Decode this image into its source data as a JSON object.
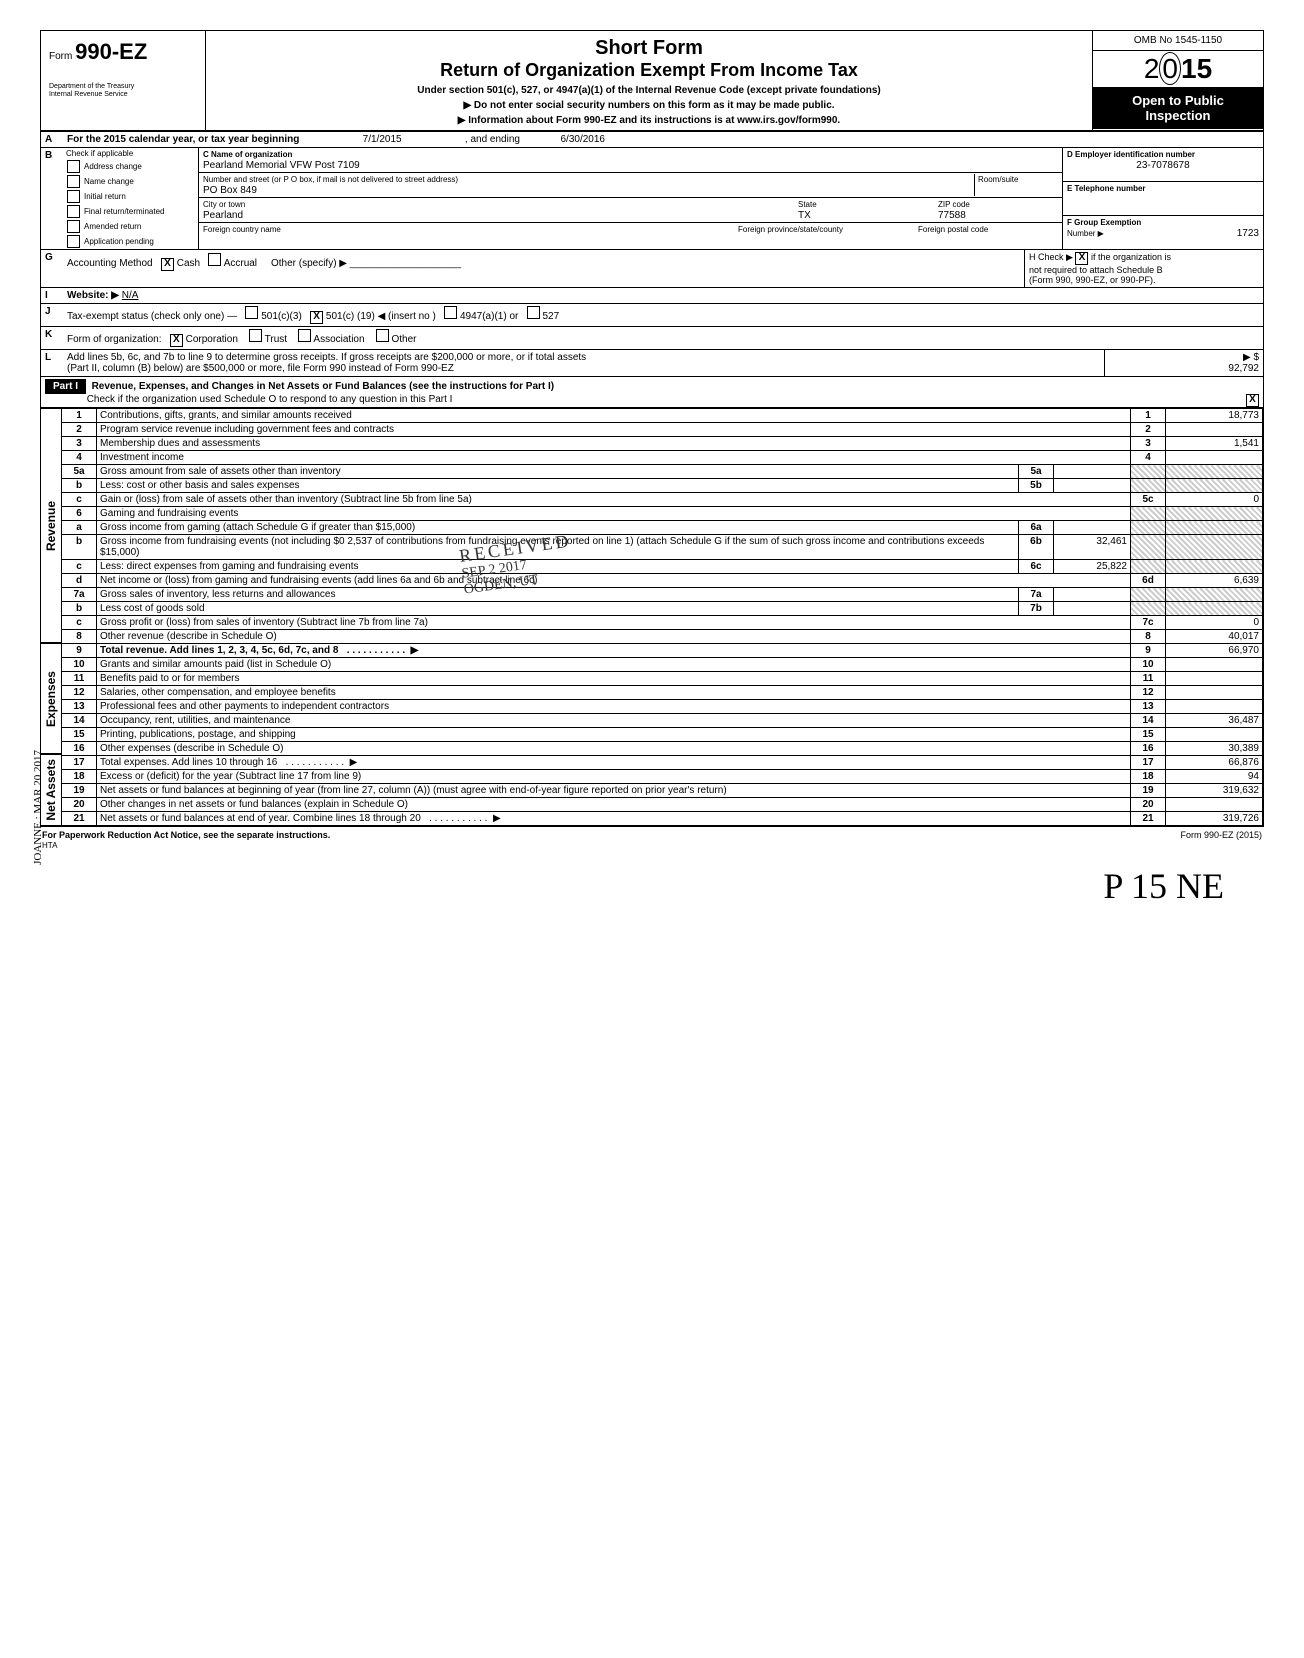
{
  "header": {
    "form_label": "Form",
    "form_number": "990-EZ",
    "dept1": "Department of the Treasury",
    "dept2": "Internal Revenue Service",
    "title1": "Short Form",
    "title2": "Return of Organization Exempt From Income Tax",
    "sub1": "Under section 501(c), 527, or 4947(a)(1) of the Internal Revenue Code (except private foundations)",
    "sub2": "▶   Do not enter social security numbers on this form as it may be made public.",
    "sub3": "▶   Information about Form 990-EZ and its instructions is at www.irs.gov/form990.",
    "omb": "OMB No 1545-1150",
    "year_prefix": "2",
    "year_mid": "0",
    "year_bold": "15",
    "open1": "Open to Public",
    "open2": "Inspection"
  },
  "rowA": {
    "text": "For the 2015 calendar year, or tax year beginning",
    "begin": "7/1/2015",
    "and": ", and ending",
    "end": "6/30/2016"
  },
  "B": {
    "label": "Check if applicable",
    "opts": [
      "Address change",
      "Name change",
      "Initial return",
      "Final return/terminated",
      "Amended return",
      "Application pending"
    ]
  },
  "C": {
    "label": "C   Name of organization",
    "name": "Pearland Memorial VFW Post 7109",
    "street_lbl": "Number and street (or P O  box, if mail is not delivered to street address)",
    "street": "PO Box 849",
    "room_lbl": "Room/suite",
    "city_lbl": "City or town",
    "city": "Pearland",
    "state_lbl": "State",
    "state": "TX",
    "zip_lbl": "ZIP code",
    "zip": "77588",
    "fc_lbl": "Foreign country name",
    "fp_lbl": "Foreign province/state/county",
    "fpc_lbl": "Foreign postal code"
  },
  "D": {
    "label": "D  Employer identification number",
    "val": "23-7078678"
  },
  "E": {
    "label": "E   Telephone number"
  },
  "F": {
    "label": "F   Group Exemption",
    "label2": "Number ▶",
    "val": "1723"
  },
  "G": {
    "label": "Accounting Method",
    "cash": "Cash",
    "accrual": "Accrual",
    "other": "Other (specify) ▶"
  },
  "H": {
    "text1": "H  Check ▶",
    "text2": "if the organization is",
    "text3": "not required to attach Schedule B",
    "text4": "(Form 990, 990-EZ, or 990-PF)."
  },
  "I": {
    "label": "Website: ▶",
    "val": "N/A"
  },
  "J": {
    "label": "Tax-exempt status (check only one) —",
    "o1": "501(c)(3)",
    "o2": "501(c) (",
    "num": "19",
    "o2b": ") ◀ (insert no )",
    "o3": "4947(a)(1) or",
    "o4": "527"
  },
  "K": {
    "label": "Form of organization:",
    "o1": "Corporation",
    "o2": "Trust",
    "o3": "Association",
    "o4": "Other"
  },
  "L": {
    "text": "Add lines 5b, 6c, and 7b to line 9 to determine gross receipts. If gross receipts are $200,000 or more, or if total assets",
    "text2": "(Part II, column (B) below) are $500,000 or more, file Form 990 instead of Form 990-EZ",
    "arrow": "▶ $",
    "val": "92,792"
  },
  "part1": {
    "hdr": "Part I",
    "title": "Revenue, Expenses, and Changes in Net Assets or Fund Balances (see the instructions for Part I)",
    "check": "Check if the organization used Schedule O to respond to any question in this Part I"
  },
  "sections": {
    "rev": "Revenue",
    "exp": "Expenses",
    "na": "Net Assets"
  },
  "lines": [
    {
      "n": "1",
      "t": "Contributions, gifts, grants, and similar amounts received",
      "c": "1",
      "v": "18,773"
    },
    {
      "n": "2",
      "t": "Program service revenue including government fees and contracts",
      "c": "2",
      "v": ""
    },
    {
      "n": "3",
      "t": "Membership dues and assessments",
      "c": "3",
      "v": "1,541"
    },
    {
      "n": "4",
      "t": "Investment income",
      "c": "4",
      "v": ""
    },
    {
      "n": "5a",
      "t": "Gross amount from sale of assets other than inventory",
      "mc": "5a",
      "mv": "",
      "shade": true
    },
    {
      "n": "b",
      "t": "Less: cost or other basis and sales expenses",
      "mc": "5b",
      "mv": "",
      "shade": true
    },
    {
      "n": "c",
      "t": "Gain or (loss) from sale of assets other than inventory (Subtract line 5b from line 5a)",
      "c": "5c",
      "v": "0"
    },
    {
      "n": "6",
      "t": "Gaming and fundraising events",
      "shade": true
    },
    {
      "n": "a",
      "t": "Gross income from gaming (attach Schedule G if greater than $15,000)",
      "mc": "6a",
      "mv": "",
      "shade": true
    },
    {
      "n": "b",
      "t": "Gross income from fundraising events (not including     $0    2,537  of contributions from fundraising events reported on line 1) (attach Schedule G if the sum of such gross income and contributions exceeds $15,000)",
      "mc": "6b",
      "mv": "32,461",
      "shade": true
    },
    {
      "n": "c",
      "t": "Less: direct expenses from gaming and fundraising events",
      "mc": "6c",
      "mv": "25,822",
      "shade": true
    },
    {
      "n": "d",
      "t": "Net income or (loss) from gaming and fundraising events (add lines 6a and 6b and subtract line 6c)",
      "c": "6d",
      "v": "6,639"
    },
    {
      "n": "7a",
      "t": "Gross sales of inventory, less returns and allowances",
      "mc": "7a",
      "mv": "",
      "shade": true
    },
    {
      "n": "b",
      "t": "Less  cost of goods sold",
      "mc": "7b",
      "mv": "",
      "shade": true
    },
    {
      "n": "c",
      "t": "Gross profit or (loss) from sales of inventory (Subtract line 7b from line 7a)",
      "c": "7c",
      "v": "0"
    },
    {
      "n": "8",
      "t": "Other revenue (describe in Schedule O)",
      "c": "8",
      "v": "40,017"
    },
    {
      "n": "9",
      "t": "Total revenue. Add lines 1, 2, 3, 4, 5c, 6d, 7c, and 8",
      "c": "9",
      "v": "66,970",
      "bold": true,
      "arrow": true
    }
  ],
  "exp_lines": [
    {
      "n": "10",
      "t": "Grants and similar amounts paid (list in Schedule O)",
      "c": "10",
      "v": ""
    },
    {
      "n": "11",
      "t": "Benefits paid to or for members",
      "c": "11",
      "v": ""
    },
    {
      "n": "12",
      "t": "Salaries, other compensation, and employee benefits",
      "c": "12",
      "v": ""
    },
    {
      "n": "13",
      "t": "Professional fees and other payments to independent contractors",
      "c": "13",
      "v": ""
    },
    {
      "n": "14",
      "t": "Occupancy, rent, utilities, and maintenance",
      "c": "14",
      "v": "36,487"
    },
    {
      "n": "15",
      "t": "Printing, publications, postage, and shipping",
      "c": "15",
      "v": ""
    },
    {
      "n": "16",
      "t": "Other expenses (describe in Schedule O)",
      "c": "16",
      "v": "30,389"
    },
    {
      "n": "17",
      "t": "Total expenses. Add lines 10 through 16",
      "c": "17",
      "v": "66,876",
      "arrow": true
    }
  ],
  "na_lines": [
    {
      "n": "18",
      "t": "Excess or (deficit) for the year (Subtract line 17 from line 9)",
      "c": "18",
      "v": "94"
    },
    {
      "n": "19",
      "t": "Net assets or fund balances at beginning of year (from line 27, column (A)) (must agree with end-of-year figure reported on prior year's return)",
      "c": "19",
      "v": "319,632",
      "shadetop": true
    },
    {
      "n": "20",
      "t": "Other changes in net assets or fund balances (explain in Schedule O)",
      "c": "20",
      "v": ""
    },
    {
      "n": "21",
      "t": "Net assets or fund balances at end of year. Combine lines 18 through 20",
      "c": "21",
      "v": "319,726",
      "arrow": true
    }
  ],
  "footer": {
    "l": "For Paperwork Reduction Act Notice, see the separate instructions.",
    "hta": "HTA",
    "r": "Form 990-EZ (2015)"
  },
  "stamp": {
    "l1": "RECEIVED",
    "l2": "SEP 2 2017",
    "l3": "OGDEN, UT"
  },
  "sig": "P 15 NE",
  "sidestamp": "JOANNE : MAR 20 2017"
}
